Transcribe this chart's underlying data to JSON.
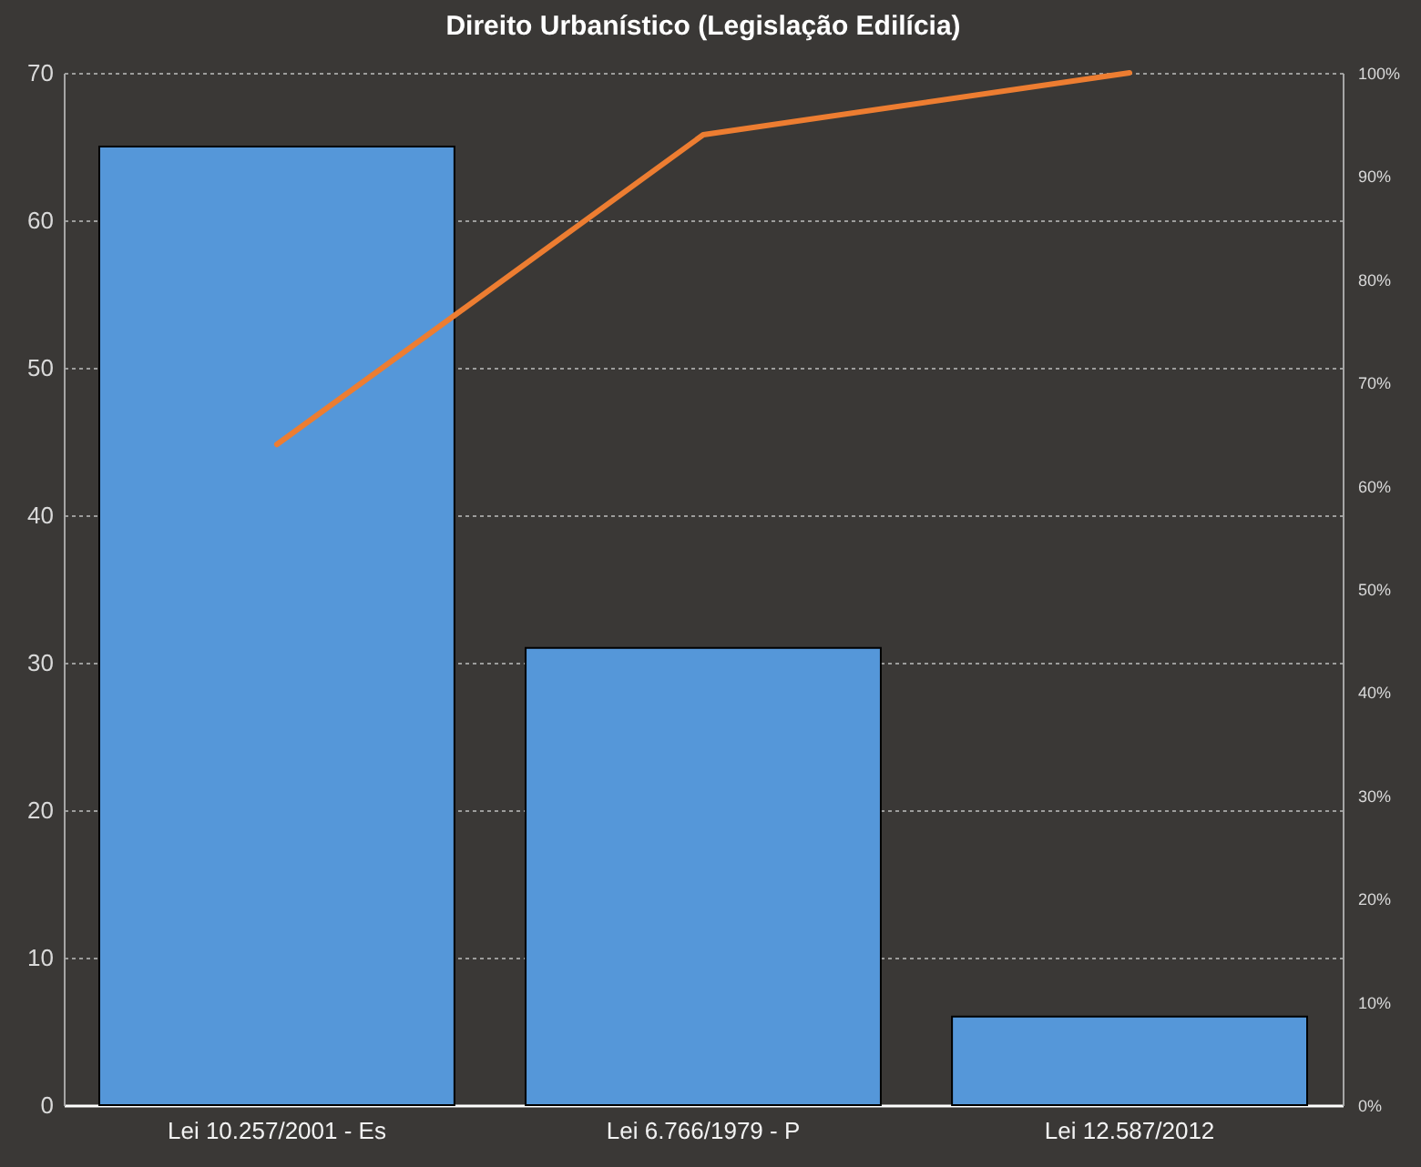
{
  "chart_data": {
    "type": "bar",
    "title": "Direito Urbanístico (Legislação Edilícia)",
    "categories": [
      "Lei 10.257/2001 - Es",
      "Lei 6.766/1979 - P",
      "Lei 12.587/2012"
    ],
    "series": [
      {
        "color": "#5597d9",
        "values": [
          65,
          31,
          6
        ]
      },
      {
        "type": "line",
        "axis": "y2",
        "color": "#ed7d31",
        "values": [
          64,
          94,
          100
        ]
      }
    ],
    "ylim": [
      0,
      70
    ],
    "yticks": [
      0,
      10,
      20,
      30,
      40,
      50,
      60,
      70
    ],
    "y2lim": [
      0,
      100
    ],
    "y2ticks": [
      {
        "value": 0,
        "label": "0%"
      },
      {
        "value": 10,
        "label": "10%"
      },
      {
        "value": 20,
        "label": "20%"
      },
      {
        "value": 30,
        "label": "30%"
      },
      {
        "value": 40,
        "label": "40%"
      },
      {
        "value": 50,
        "label": "50%"
      },
      {
        "value": 60,
        "label": "60%"
      },
      {
        "value": 70,
        "label": "70%"
      },
      {
        "value": 80,
        "label": "80%"
      },
      {
        "value": 90,
        "label": "90%"
      },
      {
        "value": 100,
        "label": "100%"
      }
    ],
    "grid": "y"
  }
}
